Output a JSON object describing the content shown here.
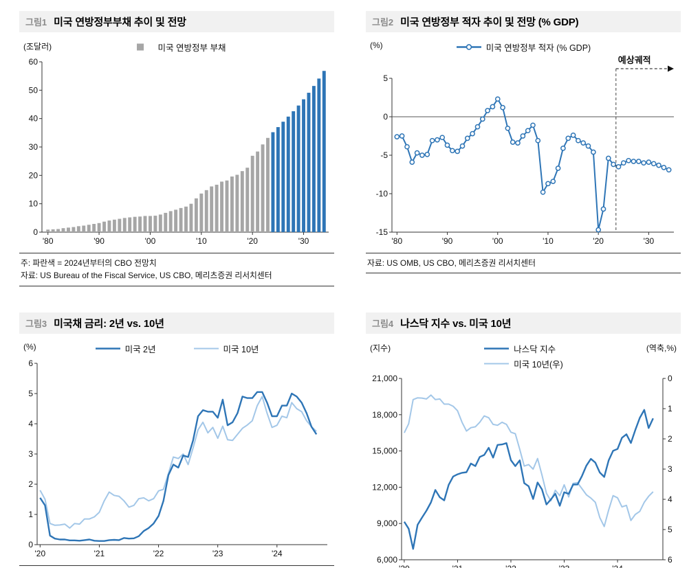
{
  "colors": {
    "dark_blue": "#2e75b6",
    "light_blue": "#a3c7e8",
    "gray": "#a6a6a6",
    "axis": "#333333",
    "header_bg": "#f1f1f1",
    "tag_gray": "#8a8a8a"
  },
  "panels": [
    {
      "tag": "그림1",
      "title": "미국 연방정부부채 추이 및 전망",
      "note": "주: 파란색 = 2024년부터의 CBO 전망치",
      "source": "자료: US Bureau of the Fiscal Service, US CBO, 메리츠증권 리서치센터"
    },
    {
      "tag": "그림2",
      "title": "미국 연방정부 적자 추이 및 전망 (% GDP)",
      "source": "자료: US OMB, US CBO, 메리츠증권 리서치센터"
    },
    {
      "tag": "그림3",
      "title": "미국채 금리: 2년 vs. 10년"
    },
    {
      "tag": "그림4",
      "title": "나스닥 지수 vs. 미국 10년"
    }
  ],
  "chart_data": [
    {
      "type": "bar",
      "title": "미국 연방정부부채 추이 및 전망",
      "unit_left": "(조달러)",
      "unit_right": "",
      "legend": [
        {
          "label": "미국 연방정부 부채",
          "color": "gray",
          "swatch": "square"
        }
      ],
      "forecast_start_year": 2024,
      "ylim": [
        0,
        60
      ],
      "ytick_step": 10,
      "xticks": [
        1980,
        1990,
        2000,
        2010,
        2020,
        2030
      ],
      "xtick_labels": [
        "'80",
        "'90",
        "'00",
        "'10",
        "'20",
        "'30"
      ],
      "x": [
        1980,
        1981,
        1982,
        1983,
        1984,
        1985,
        1986,
        1987,
        1988,
        1989,
        1990,
        1991,
        1992,
        1993,
        1994,
        1995,
        1996,
        1997,
        1998,
        1999,
        2000,
        2001,
        2002,
        2003,
        2004,
        2005,
        2006,
        2007,
        2008,
        2009,
        2010,
        2011,
        2012,
        2013,
        2014,
        2015,
        2016,
        2017,
        2018,
        2019,
        2020,
        2021,
        2022,
        2023,
        2024,
        2025,
        2026,
        2027,
        2028,
        2029,
        2030,
        2031,
        2032,
        2033,
        2034
      ],
      "values": [
        0.9,
        1.0,
        1.1,
        1.4,
        1.6,
        1.8,
        2.1,
        2.3,
        2.6,
        2.9,
        3.2,
        3.7,
        4.1,
        4.4,
        4.7,
        5.0,
        5.2,
        5.4,
        5.5,
        5.7,
        5.7,
        5.8,
        6.2,
        6.8,
        7.4,
        7.9,
        8.5,
        9.0,
        10.0,
        11.9,
        13.6,
        14.8,
        16.1,
        16.7,
        17.8,
        18.2,
        19.6,
        20.2,
        21.5,
        22.7,
        26.9,
        28.4,
        30.9,
        33.2,
        35.2,
        37.0,
        38.9,
        40.7,
        42.6,
        44.6,
        46.8,
        49.1,
        51.5,
        54.1,
        56.8
      ]
    },
    {
      "type": "line",
      "markers": true,
      "title": "미국 연방정부 적자 추이 및 전망 (% GDP)",
      "unit_left": "(%)",
      "unit_right": "",
      "legend": [
        {
          "label": "미국 연방정부 적자 (% GDP)",
          "color": "dark_blue",
          "swatch": "line-marker"
        }
      ],
      "annotation": {
        "label": "예상궤적",
        "x": 2023.5,
        "style": "dashed-vline-with-right-arrow"
      },
      "zero_line": true,
      "ylim": [
        -15,
        5
      ],
      "ytick_step": 5,
      "xlim": [
        1979,
        2035
      ],
      "xticks": [
        1980,
        1990,
        2000,
        2010,
        2020,
        2030
      ],
      "xtick_labels": [
        "'80",
        "'90",
        "'00",
        "'10",
        "'20",
        "'30"
      ],
      "x": [
        1980,
        1981,
        1982,
        1983,
        1984,
        1985,
        1986,
        1987,
        1988,
        1989,
        1990,
        1991,
        1992,
        1993,
        1994,
        1995,
        1996,
        1997,
        1998,
        1999,
        2000,
        2001,
        2002,
        2003,
        2004,
        2005,
        2006,
        2007,
        2008,
        2009,
        2010,
        2011,
        2012,
        2013,
        2014,
        2015,
        2016,
        2017,
        2018,
        2019,
        2020,
        2021,
        2022,
        2023,
        2024,
        2025,
        2026,
        2027,
        2028,
        2029,
        2030,
        2031,
        2032,
        2033,
        2034
      ],
      "values": [
        -2.6,
        -2.5,
        -3.9,
        -5.9,
        -4.7,
        -5.0,
        -4.9,
        -3.1,
        -3.0,
        -2.7,
        -3.7,
        -4.4,
        -4.5,
        -3.8,
        -2.8,
        -2.2,
        -1.3,
        -0.3,
        0.8,
        1.3,
        2.3,
        1.2,
        -1.5,
        -3.3,
        -3.4,
        -2.5,
        -1.8,
        -1.1,
        -3.1,
        -9.8,
        -8.7,
        -8.4,
        -6.7,
        -4.1,
        -2.8,
        -2.4,
        -3.1,
        -3.4,
        -3.8,
        -4.6,
        -14.7,
        -12.0,
        -5.4,
        -6.2,
        -6.5,
        -6.0,
        -5.7,
        -5.8,
        -5.8,
        -6.0,
        -5.9,
        -6.1,
        -6.3,
        -6.6,
        -6.9
      ]
    },
    {
      "type": "line",
      "title": "미국채 금리: 2년 vs. 10년",
      "unit_left": "(%)",
      "unit_right": "",
      "x_start": 2020,
      "x_frequency": "monthly",
      "xlim": [
        2019.95,
        2024.85
      ],
      "ylim": [
        0,
        6
      ],
      "ytick_step": 1,
      "xticks": [
        2020,
        2021,
        2022,
        2023,
        2024
      ],
      "xtick_labels": [
        "'20",
        "'21",
        "'22",
        "'23",
        "'24"
      ],
      "series": [
        {
          "name": "미국 2년",
          "color": "dark_blue",
          "width": 2.4,
          "values": [
            1.55,
            1.3,
            0.3,
            0.2,
            0.17,
            0.17,
            0.14,
            0.14,
            0.13,
            0.15,
            0.17,
            0.13,
            0.12,
            0.12,
            0.15,
            0.16,
            0.15,
            0.22,
            0.2,
            0.21,
            0.28,
            0.45,
            0.55,
            0.7,
            0.95,
            1.45,
            2.3,
            2.65,
            2.55,
            2.95,
            2.9,
            3.45,
            4.25,
            4.45,
            4.4,
            4.4,
            4.2,
            4.8,
            3.95,
            4.05,
            4.35,
            4.9,
            4.85,
            4.85,
            5.05,
            5.05,
            4.7,
            4.25,
            4.25,
            4.6,
            4.6,
            5.0,
            4.9,
            4.7,
            4.35,
            3.9,
            3.65
          ]
        },
        {
          "name": "미국 10년",
          "color": "light_blue",
          "width": 2.0,
          "values": [
            1.8,
            1.5,
            0.7,
            0.64,
            0.65,
            0.68,
            0.55,
            0.7,
            0.68,
            0.85,
            0.85,
            0.92,
            1.07,
            1.45,
            1.74,
            1.63,
            1.6,
            1.45,
            1.24,
            1.3,
            1.52,
            1.55,
            1.45,
            1.52,
            1.78,
            1.83,
            2.35,
            2.9,
            2.85,
            3.0,
            2.65,
            3.2,
            3.8,
            4.05,
            3.7,
            3.88,
            3.52,
            3.92,
            3.47,
            3.45,
            3.65,
            3.85,
            3.96,
            4.1,
            4.6,
            4.9,
            4.35,
            3.88,
            3.95,
            4.25,
            4.2,
            4.7,
            4.5,
            4.4,
            4.1,
            3.9,
            3.75
          ]
        }
      ]
    },
    {
      "type": "line",
      "dual_axis": true,
      "title": "나스닥 지수 vs. 미국 10년",
      "unit_left": "(지수)",
      "unit_right": "(역축,%)",
      "x_start": 2020,
      "x_frequency": "monthly",
      "xlim": [
        2019.95,
        2024.85
      ],
      "left_ylim": [
        6000,
        21000
      ],
      "left_ytick_step": 3000,
      "right_ylim": [
        0,
        6
      ],
      "right_ytick_step": 1,
      "right_inverted": true,
      "xticks": [
        2020,
        2021,
        2022,
        2023,
        2024
      ],
      "xtick_labels": [
        "'20",
        "'21",
        "'22",
        "'23",
        "'24"
      ],
      "series": [
        {
          "name": "나스닥 지수",
          "axis": "left",
          "color": "dark_blue",
          "width": 2.4,
          "values": [
            9150,
            8567,
            6900,
            8890,
            9490,
            10060,
            10745,
            11775,
            11168,
            10912,
            12198,
            12888,
            13070,
            13192,
            13247,
            13963,
            13749,
            14504,
            14673,
            15259,
            14449,
            15498,
            15538,
            15645,
            14240,
            13751,
            14221,
            12335,
            12081,
            11029,
            12391,
            11816,
            10576,
            10988,
            11468,
            10466,
            11585,
            11456,
            12222,
            12227,
            12935,
            13788,
            14346,
            14035,
            13219,
            12851,
            14226,
            15011,
            15164,
            16092,
            16379,
            15658,
            16735,
            17733,
            18400,
            16900,
            17700
          ]
        },
        {
          "name": "미국 10년(우)",
          "axis": "right",
          "color": "light_blue",
          "width": 2.0,
          "values": [
            1.8,
            1.5,
            0.7,
            0.64,
            0.65,
            0.68,
            0.55,
            0.7,
            0.68,
            0.85,
            0.85,
            0.92,
            1.07,
            1.45,
            1.74,
            1.63,
            1.6,
            1.45,
            1.24,
            1.3,
            1.52,
            1.55,
            1.45,
            1.52,
            1.78,
            1.83,
            2.35,
            2.9,
            2.85,
            3.0,
            2.65,
            3.2,
            3.8,
            4.05,
            3.7,
            3.88,
            3.52,
            3.92,
            3.47,
            3.45,
            3.65,
            3.85,
            3.96,
            4.1,
            4.6,
            4.9,
            4.35,
            3.88,
            3.95,
            4.25,
            4.2,
            4.7,
            4.5,
            4.4,
            4.1,
            3.9,
            3.75
          ]
        }
      ]
    }
  ]
}
